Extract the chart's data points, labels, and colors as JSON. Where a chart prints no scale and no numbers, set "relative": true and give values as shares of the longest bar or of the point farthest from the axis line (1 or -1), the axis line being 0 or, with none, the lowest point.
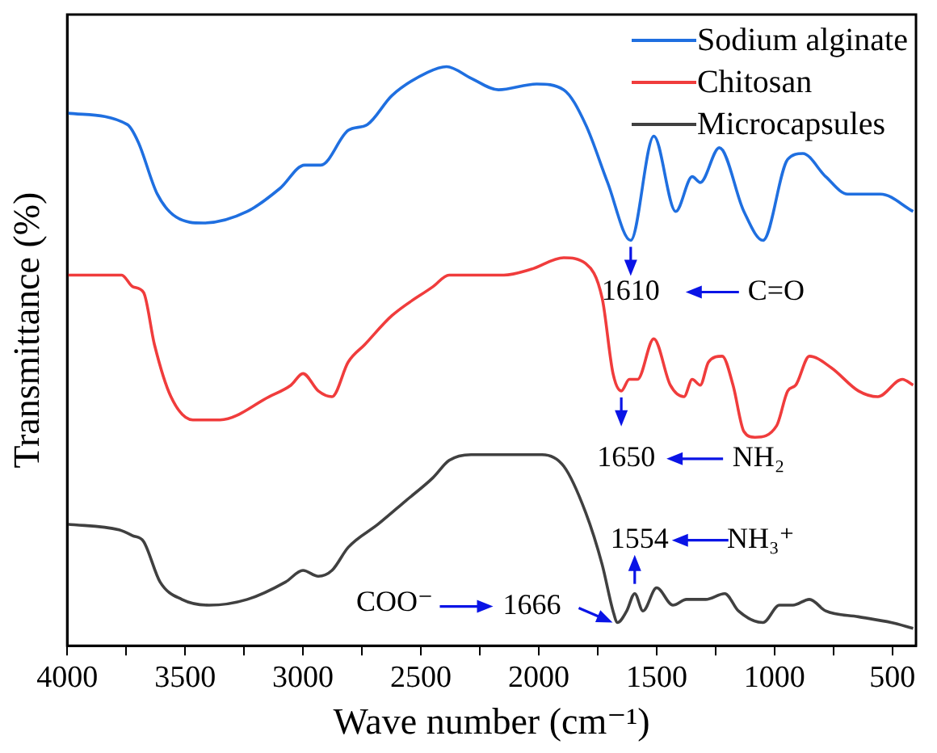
{
  "chart_data": {
    "type": "line",
    "relative": true,
    "xlabel": "Wave number (cm⁻¹)",
    "ylabel": "Transmittance (%)",
    "legend": "top right",
    "marker": "none",
    "line_style": "solid",
    "xlim": [
      4000,
      400
    ],
    "xticks": [
      4000,
      {
        "value": 3750,
        "label": null
      },
      3500,
      {
        "value": 3250,
        "label": null
      },
      3000,
      {
        "value": 2750,
        "label": null
      },
      2500,
      {
        "value": 2250,
        "label": null
      },
      2000,
      {
        "value": 1750,
        "label": null
      },
      1500,
      {
        "value": 1250,
        "label": null
      },
      1000,
      {
        "value": 750,
        "label": null
      },
      500
    ],
    "series": [
      {
        "name": "Sodium alginate",
        "color": "#1f6fe0",
        "x": [
          4000,
          3745,
          3699,
          3618,
          3537,
          3422,
          3236,
          3097,
          2993,
          2924,
          2808,
          2727,
          2623,
          2472,
          2391,
          2287,
          2171,
          2009,
          1894,
          1801,
          1708,
          1610,
          1512,
          1419,
          1349,
          1315,
          1234,
          1130,
          1049,
          944,
          880,
          783,
          690,
          551,
          412
        ],
        "values": [
          0.92,
          0.9,
          0.87,
          0.78,
          0.74,
          0.73,
          0.75,
          0.79,
          0.83,
          0.83,
          0.89,
          0.9,
          0.95,
          0.99,
          1.0,
          0.98,
          0.96,
          0.97,
          0.96,
          0.9,
          0.8,
          0.7,
          0.88,
          0.75,
          0.81,
          0.8,
          0.86,
          0.75,
          0.7,
          0.84,
          0.85,
          0.81,
          0.78,
          0.78,
          0.75
        ]
      },
      {
        "name": "Chitosan",
        "color": "#f03c3c",
        "x": [
          4000,
          3769,
          3722,
          3676,
          3630,
          3560,
          3467,
          3352,
          3144,
          3051,
          3000,
          2935,
          2877,
          2808,
          2738,
          2623,
          2449,
          2380,
          2287,
          2148,
          2033,
          1894,
          1801,
          1731,
          1685,
          1650,
          1616,
          1581,
          1512,
          1442,
          1384,
          1349,
          1315,
          1280,
          1222,
          1176,
          1130,
          1083,
          991,
          944,
          910,
          852,
          759,
          644,
          562,
          458,
          412
        ],
        "values": [
          0.64,
          0.64,
          0.62,
          0.61,
          0.52,
          0.43,
          0.39,
          0.39,
          0.43,
          0.45,
          0.47,
          0.44,
          0.43,
          0.49,
          0.52,
          0.57,
          0.62,
          0.64,
          0.64,
          0.64,
          0.65,
          0.67,
          0.66,
          0.6,
          0.47,
          0.44,
          0.46,
          0.46,
          0.53,
          0.45,
          0.43,
          0.46,
          0.45,
          0.49,
          0.5,
          0.45,
          0.37,
          0.36,
          0.38,
          0.44,
          0.45,
          0.5,
          0.48,
          0.44,
          0.43,
          0.46,
          0.45
        ]
      },
      {
        "name": "Microcapsules",
        "color": "#404040",
        "x": [
          4000,
          3780,
          3722,
          3676,
          3606,
          3514,
          3398,
          3236,
          3074,
          3000,
          2935,
          2877,
          2808,
          2681,
          2565,
          2449,
          2380,
          2287,
          2148,
          1986,
          1894,
          1801,
          1731,
          1685,
          1666,
          1627,
          1593,
          1558,
          1500,
          1431,
          1373,
          1292,
          1211,
          1153,
          1049,
          979,
          922,
          852,
          783,
          644,
          505,
          412
        ],
        "values": [
          0.21,
          0.2,
          0.19,
          0.18,
          0.11,
          0.08,
          0.07,
          0.08,
          0.11,
          0.13,
          0.12,
          0.13,
          0.17,
          0.21,
          0.25,
          0.29,
          0.32,
          0.33,
          0.33,
          0.33,
          0.31,
          0.23,
          0.14,
          0.06,
          0.04,
          0.06,
          0.09,
          0.06,
          0.1,
          0.07,
          0.08,
          0.08,
          0.09,
          0.06,
          0.04,
          0.07,
          0.07,
          0.08,
          0.06,
          0.05,
          0.04,
          0.03
        ]
      }
    ],
    "annotations": [
      {
        "text": "1610",
        "x": 1610,
        "y": 0.7
      },
      "C=O",
      {
        "text": "1650",
        "x": 1650,
        "y": 0.44
      },
      "NH₂",
      {
        "text": "1554",
        "x": 1593,
        "y": 0.09
      },
      "NH₃⁺",
      {
        "text": "1666",
        "x": 1666,
        "y": 0.04
      },
      "COO⁻"
    ]
  }
}
